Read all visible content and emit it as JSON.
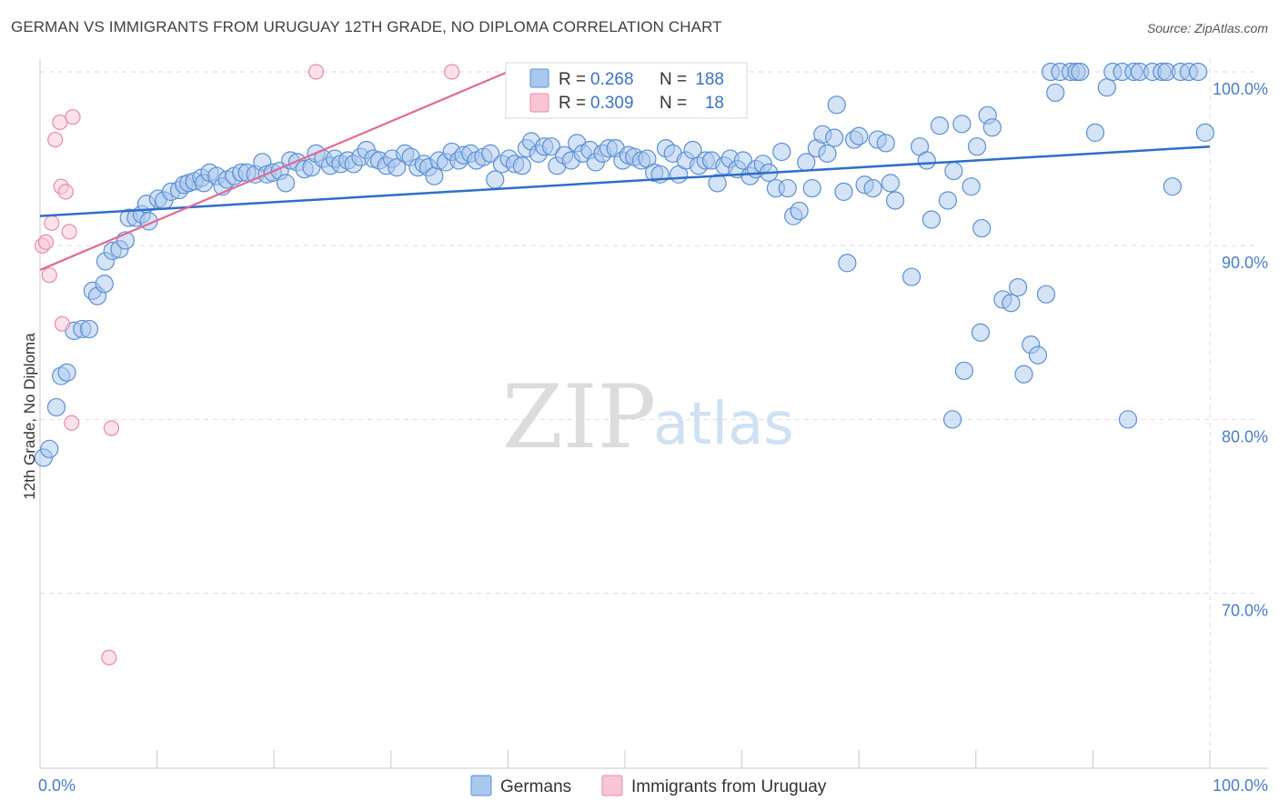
{
  "header": {
    "title": "GERMAN VS IMMIGRANTS FROM URUGUAY 12TH GRADE, NO DIPLOMA CORRELATION CHART",
    "source": "Source: ZipAtlas.com"
  },
  "watermark": {
    "zip": "ZIP",
    "atlas": "atlas"
  },
  "legend": {
    "rows": [
      {
        "r_label": "R =",
        "r_value": "0.268",
        "n_label": "N =",
        "n_value": "188",
        "color": "#a9c8ee"
      },
      {
        "r_label": "R =",
        "r_value": "0.309",
        "n_label": "N =",
        "n_value": "18",
        "color": "#f6b9cb"
      }
    ]
  },
  "bottom_legend": [
    {
      "label": "Germans",
      "color": "#a9c8ee"
    },
    {
      "label": "Immigrants from Uruguay",
      "color": "#f6b9cb"
    }
  ],
  "chart_data": {
    "type": "scatter",
    "title": "GERMAN VS IMMIGRANTS FROM URUGUAY 12TH GRADE, NO DIPLOMA CORRELATION CHART",
    "xlabel": "",
    "ylabel": "12th Grade, No Diploma",
    "xlim": [
      0,
      100
    ],
    "ylim": [
      60,
      102.5
    ],
    "x_tick_labels": [
      "0.0%",
      "100.0%"
    ],
    "y_ticks": [
      70,
      80,
      90,
      100
    ],
    "y_tick_labels": [
      "70.0%",
      "80.0%",
      "90.0%",
      "100.0%"
    ],
    "grid": true,
    "legend_position": "top-center",
    "colors": {
      "germans_fill": "#a9c8ee",
      "germans_stroke": "#5b8fd4",
      "germans_line": "#2e6ec9",
      "uruguay_fill": "#f9c5d4",
      "uruguay_stroke": "#e88aa6",
      "uruguay_line": "#e06a94"
    },
    "series": [
      {
        "name": "Germans",
        "trend": {
          "x": [
            0,
            100
          ],
          "y": [
            91.7,
            95.7
          ]
        },
        "points": [
          [
            0.3,
            77.8
          ],
          [
            0.8,
            78.3
          ],
          [
            1.4,
            80.7
          ],
          [
            1.8,
            82.5
          ],
          [
            2.3,
            82.7
          ],
          [
            2.9,
            85.1
          ],
          [
            3.6,
            85.2
          ],
          [
            4.2,
            85.2
          ],
          [
            4.5,
            87.4
          ],
          [
            4.9,
            87.1
          ],
          [
            5.5,
            87.8
          ],
          [
            5.6,
            89.1
          ],
          [
            6.2,
            89.7
          ],
          [
            6.8,
            89.8
          ],
          [
            7.3,
            90.3
          ],
          [
            7.6,
            91.6
          ],
          [
            8.2,
            91.6
          ],
          [
            8.7,
            91.8
          ],
          [
            9.3,
            91.4
          ],
          [
            9.1,
            92.4
          ],
          [
            10.1,
            92.7
          ],
          [
            10.6,
            92.6
          ],
          [
            11.2,
            93.1
          ],
          [
            11.9,
            93.2
          ],
          [
            12.3,
            93.5
          ],
          [
            12.7,
            93.6
          ],
          [
            13.2,
            93.7
          ],
          [
            13.8,
            93.9
          ],
          [
            14.0,
            93.6
          ],
          [
            14.5,
            94.2
          ],
          [
            15.1,
            94.0
          ],
          [
            15.6,
            93.4
          ],
          [
            16.0,
            93.8
          ],
          [
            16.6,
            94.0
          ],
          [
            17.2,
            94.2
          ],
          [
            17.7,
            94.2
          ],
          [
            18.4,
            94.1
          ],
          [
            19.0,
            94.8
          ],
          [
            19.4,
            94.1
          ],
          [
            19.9,
            94.2
          ],
          [
            20.5,
            94.3
          ],
          [
            21.0,
            93.6
          ],
          [
            21.4,
            94.9
          ],
          [
            22.0,
            94.8
          ],
          [
            22.6,
            94.4
          ],
          [
            23.2,
            94.5
          ],
          [
            23.6,
            95.3
          ],
          [
            24.2,
            95.0
          ],
          [
            24.8,
            94.6
          ],
          [
            25.2,
            95.0
          ],
          [
            25.7,
            94.7
          ],
          [
            26.3,
            94.9
          ],
          [
            26.8,
            94.7
          ],
          [
            27.4,
            95.1
          ],
          [
            27.9,
            95.5
          ],
          [
            28.5,
            95.0
          ],
          [
            29.0,
            94.9
          ],
          [
            29.6,
            94.6
          ],
          [
            30.1,
            95.0
          ],
          [
            30.5,
            94.5
          ],
          [
            31.2,
            95.3
          ],
          [
            31.7,
            95.1
          ],
          [
            32.3,
            94.5
          ],
          [
            32.8,
            94.7
          ],
          [
            33.2,
            94.5
          ],
          [
            33.7,
            94.0
          ],
          [
            34.1,
            94.9
          ],
          [
            34.7,
            94.8
          ],
          [
            35.2,
            95.4
          ],
          [
            35.8,
            94.9
          ],
          [
            36.2,
            95.2
          ],
          [
            36.8,
            95.3
          ],
          [
            37.3,
            94.9
          ],
          [
            37.9,
            95.1
          ],
          [
            38.5,
            95.3
          ],
          [
            38.9,
            93.8
          ],
          [
            39.5,
            94.7
          ],
          [
            40.1,
            95.0
          ],
          [
            40.6,
            94.7
          ],
          [
            41.2,
            94.6
          ],
          [
            41.6,
            95.6
          ],
          [
            42.0,
            96.0
          ],
          [
            42.6,
            95.3
          ],
          [
            43.1,
            95.7
          ],
          [
            43.7,
            95.7
          ],
          [
            44.2,
            94.6
          ],
          [
            44.8,
            95.2
          ],
          [
            45.4,
            94.9
          ],
          [
            45.9,
            95.9
          ],
          [
            46.4,
            95.3
          ],
          [
            47.0,
            95.5
          ],
          [
            47.5,
            94.8
          ],
          [
            48.1,
            95.3
          ],
          [
            48.6,
            95.6
          ],
          [
            49.2,
            95.6
          ],
          [
            49.8,
            94.9
          ],
          [
            50.3,
            95.2
          ],
          [
            50.8,
            95.1
          ],
          [
            51.4,
            94.9
          ],
          [
            51.9,
            95.0
          ],
          [
            52.5,
            94.2
          ],
          [
            53.0,
            94.1
          ],
          [
            53.5,
            95.6
          ],
          [
            54.1,
            95.3
          ],
          [
            54.6,
            94.1
          ],
          [
            55.2,
            94.9
          ],
          [
            55.8,
            95.5
          ],
          [
            56.3,
            94.6
          ],
          [
            56.9,
            94.9
          ],
          [
            57.4,
            94.9
          ],
          [
            57.9,
            93.6
          ],
          [
            58.5,
            94.6
          ],
          [
            59.0,
            95.0
          ],
          [
            59.6,
            94.4
          ],
          [
            60.1,
            94.9
          ],
          [
            60.7,
            94.0
          ],
          [
            61.2,
            94.4
          ],
          [
            61.8,
            94.7
          ],
          [
            62.3,
            94.2
          ],
          [
            62.9,
            93.3
          ],
          [
            63.4,
            95.4
          ],
          [
            63.9,
            93.3
          ],
          [
            64.4,
            91.7
          ],
          [
            64.9,
            92.0
          ],
          [
            65.5,
            94.8
          ],
          [
            66.0,
            93.3
          ],
          [
            66.4,
            95.6
          ],
          [
            66.9,
            96.4
          ],
          [
            67.3,
            95.3
          ],
          [
            67.9,
            96.2
          ],
          [
            68.1,
            98.1
          ],
          [
            68.7,
            93.1
          ],
          [
            69.0,
            89.0
          ],
          [
            69.6,
            96.1
          ],
          [
            70.0,
            96.3
          ],
          [
            70.5,
            93.5
          ],
          [
            71.2,
            93.3
          ],
          [
            71.6,
            96.1
          ],
          [
            72.3,
            95.9
          ],
          [
            72.7,
            93.6
          ],
          [
            73.1,
            92.6
          ],
          [
            74.5,
            88.2
          ],
          [
            75.2,
            95.7
          ],
          [
            75.8,
            94.9
          ],
          [
            76.2,
            91.5
          ],
          [
            76.9,
            96.9
          ],
          [
            77.6,
            92.6
          ],
          [
            78.1,
            94.3
          ],
          [
            78.8,
            97.0
          ],
          [
            79.6,
            93.4
          ],
          [
            80.1,
            95.7
          ],
          [
            80.5,
            91.0
          ],
          [
            79.0,
            82.8
          ],
          [
            78.0,
            80.0
          ],
          [
            80.4,
            85.0
          ],
          [
            81.0,
            97.5
          ],
          [
            81.4,
            96.8
          ],
          [
            82.3,
            86.9
          ],
          [
            83.0,
            86.7
          ],
          [
            83.6,
            87.6
          ],
          [
            84.1,
            82.6
          ],
          [
            84.7,
            84.3
          ],
          [
            85.3,
            83.7
          ],
          [
            86.0,
            87.2
          ],
          [
            86.4,
            100.0
          ],
          [
            86.8,
            98.8
          ],
          [
            87.2,
            100.0
          ],
          [
            88.1,
            100.0
          ],
          [
            88.6,
            100.0
          ],
          [
            88.9,
            100.0
          ],
          [
            90.2,
            96.5
          ],
          [
            91.2,
            99.1
          ],
          [
            91.7,
            100.0
          ],
          [
            92.5,
            100.0
          ],
          [
            93.0,
            80.0
          ],
          [
            93.5,
            100.0
          ],
          [
            94.0,
            100.0
          ],
          [
            95.1,
            100.0
          ],
          [
            95.9,
            100.0
          ],
          [
            96.3,
            100.0
          ],
          [
            96.8,
            93.4
          ],
          [
            97.5,
            100.0
          ],
          [
            98.2,
            100.0
          ],
          [
            99.0,
            100.0
          ],
          [
            99.6,
            96.5
          ]
        ]
      },
      {
        "name": "Immigrants from Uruguay",
        "trend": {
          "x": [
            0,
            40
          ],
          "y": [
            88.6,
            100.0
          ]
        },
        "points": [
          [
            0.2,
            90.0
          ],
          [
            0.5,
            90.2
          ],
          [
            0.8,
            88.3
          ],
          [
            1.0,
            91.3
          ],
          [
            1.3,
            96.1
          ],
          [
            1.7,
            97.1
          ],
          [
            1.8,
            93.4
          ],
          [
            2.2,
            93.1
          ],
          [
            2.5,
            90.8
          ],
          [
            2.7,
            79.8
          ],
          [
            1.9,
            85.5
          ],
          [
            2.8,
            97.4
          ],
          [
            6.1,
            79.5
          ],
          [
            5.9,
            66.3
          ],
          [
            23.6,
            100.0
          ],
          [
            35.2,
            100.0
          ]
        ]
      }
    ]
  }
}
